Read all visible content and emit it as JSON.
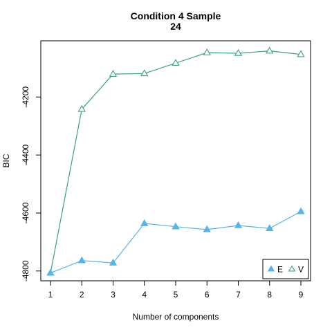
{
  "chart_data": {
    "type": "line",
    "title_lines": [
      "Condition 4 Sample",
      "24"
    ],
    "xlabel": "Number of components",
    "ylabel": "BIC",
    "x": [
      1,
      2,
      3,
      4,
      5,
      6,
      7,
      8,
      9
    ],
    "xlim": [
      1,
      9
    ],
    "ylim": [
      -4810,
      -4030
    ],
    "y_ticks": [
      -4800,
      -4600,
      -4400,
      -4200
    ],
    "series": [
      {
        "name": "E",
        "color": "#56B4E9",
        "marker": "filled-triangle",
        "values": [
          -4807,
          -4764,
          -4772,
          -4636,
          -4647,
          -4657,
          -4643,
          -4653,
          -4595
        ]
      },
      {
        "name": "V",
        "color": "#3BA17D",
        "marker": "open-triangle",
        "values": [
          -4807,
          -4242,
          -4121,
          -4119,
          -4083,
          -4047,
          -4049,
          -4041,
          -4053
        ]
      }
    ],
    "legend_position": "bottom-right",
    "grid": false
  }
}
